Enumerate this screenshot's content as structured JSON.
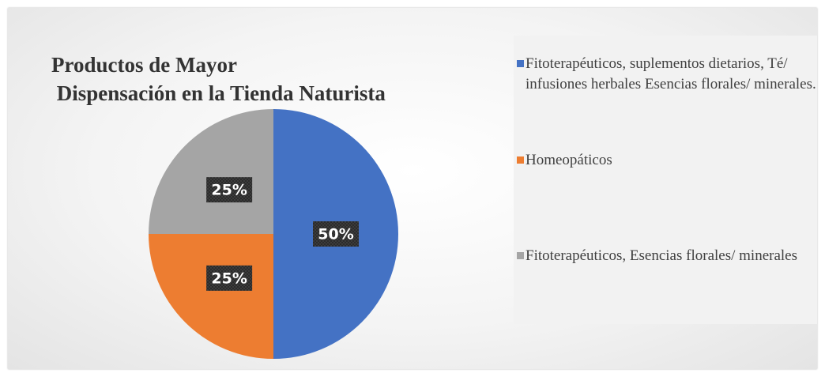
{
  "chart_data": {
    "type": "pie",
    "title": "Productos de Mayor\n Dispensación en la Tienda Naturista",
    "categories": [
      "Fitoterapéuticos, suplementos dietarios, Té/ infusiones herbales Esencias florales/ minerales.",
      "Homeopáticos",
      "Fitoterapéuticos, Esencias florales/ minerales"
    ],
    "values": [
      50,
      25,
      25
    ],
    "value_labels": [
      "50%",
      "25%",
      "25%"
    ],
    "colors": [
      "#4472c4",
      "#ed7d31",
      "#a5a5a5"
    ],
    "legend": "right"
  }
}
